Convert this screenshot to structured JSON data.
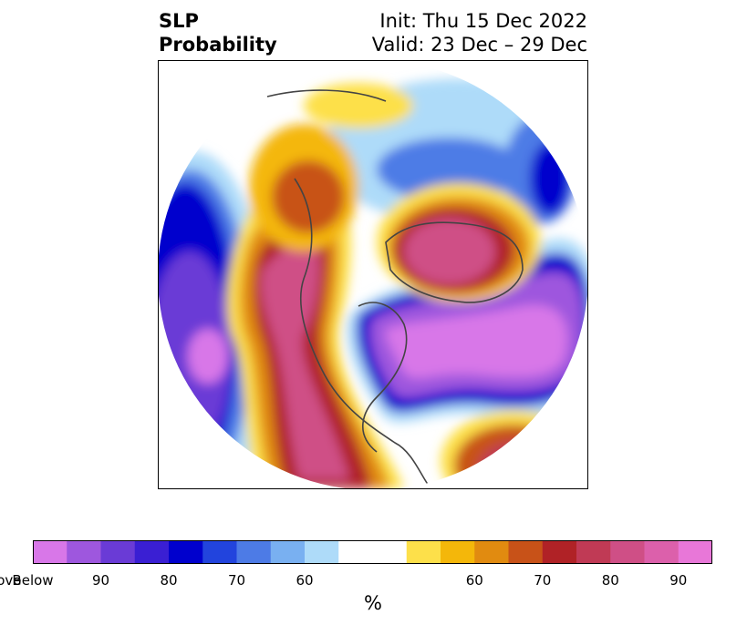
{
  "title": {
    "left_line1": "SLP",
    "left_line2": "Probability",
    "right_line1": "Init: Thu 15 Dec 2022",
    "right_line2": "Valid: 23 Dec – 29 Dec"
  },
  "colorbar": {
    "unit": "%",
    "colors": [
      "#d877e8",
      "#9e57de",
      "#6a3bd6",
      "#3a1fd3",
      "#0000cd",
      "#2244dd",
      "#4d7be6",
      "#79b0f1",
      "#aedbf9",
      "#ffffff",
      "#fde04a",
      "#f4b70a",
      "#e18b10",
      "#c85218",
      "#b02226",
      "#c03a55",
      "#cf4f86",
      "#dc60ab",
      "#e877d8"
    ],
    "ticks": [
      {
        "label": "Below",
        "index": 0
      },
      {
        "label": "90",
        "index": 2
      },
      {
        "label": "80",
        "index": 4
      },
      {
        "label": "70",
        "index": 6
      },
      {
        "label": "60",
        "index": 8
      },
      {
        "label": "60",
        "index": 12
      },
      {
        "label": "70",
        "index": 14
      },
      {
        "label": "80",
        "index": 16
      },
      {
        "label": "90",
        "index": 18
      },
      {
        "label": "Above",
        "index": 20
      }
    ]
  }
}
